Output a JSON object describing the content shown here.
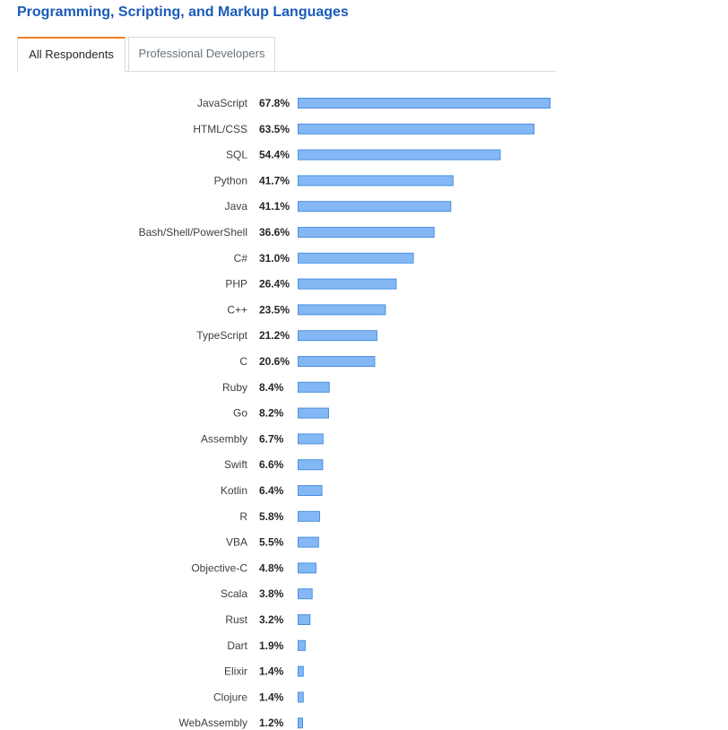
{
  "title": "Programming, Scripting, and Markup Languages",
  "tabs": [
    {
      "label": "All Respondents",
      "active": true
    },
    {
      "label": "Professional Developers",
      "active": false
    }
  ],
  "colors": {
    "bar_fill": "#84b8f5",
    "bar_stroke": "#4a8fe0",
    "title": "#1a5bb8",
    "tab_accent": "#f48024"
  },
  "chart_data": {
    "type": "bar",
    "orientation": "horizontal",
    "value_suffix": "%",
    "categories": [
      "JavaScript",
      "HTML/CSS",
      "SQL",
      "Python",
      "Java",
      "Bash/Shell/PowerShell",
      "C#",
      "PHP",
      "C++",
      "TypeScript",
      "C",
      "Ruby",
      "Go",
      "Assembly",
      "Swift",
      "Kotlin",
      "R",
      "VBA",
      "Objective-C",
      "Scala",
      "Rust",
      "Dart",
      "Elixir",
      "Clojure",
      "WebAssembly"
    ],
    "values": [
      67.8,
      63.5,
      54.4,
      41.7,
      41.1,
      36.6,
      31.0,
      26.4,
      23.5,
      21.2,
      20.6,
      8.4,
      8.2,
      6.7,
      6.6,
      6.4,
      5.8,
      5.5,
      4.8,
      3.8,
      3.2,
      1.9,
      1.4,
      1.4,
      1.2
    ],
    "value_labels": [
      "67.8%",
      "63.5%",
      "54.4%",
      "41.7%",
      "41.1%",
      "36.6%",
      "31.0%",
      "26.4%",
      "23.5%",
      "21.2%",
      "20.6%",
      "8.4%",
      "8.2%",
      "6.7%",
      "6.6%",
      "6.4%",
      "5.8%",
      "5.5%",
      "4.8%",
      "3.8%",
      "3.2%",
      "1.9%",
      "1.4%",
      "1.4%",
      "1.2%"
    ],
    "grid": false,
    "xlim": [
      0,
      67.8
    ]
  }
}
